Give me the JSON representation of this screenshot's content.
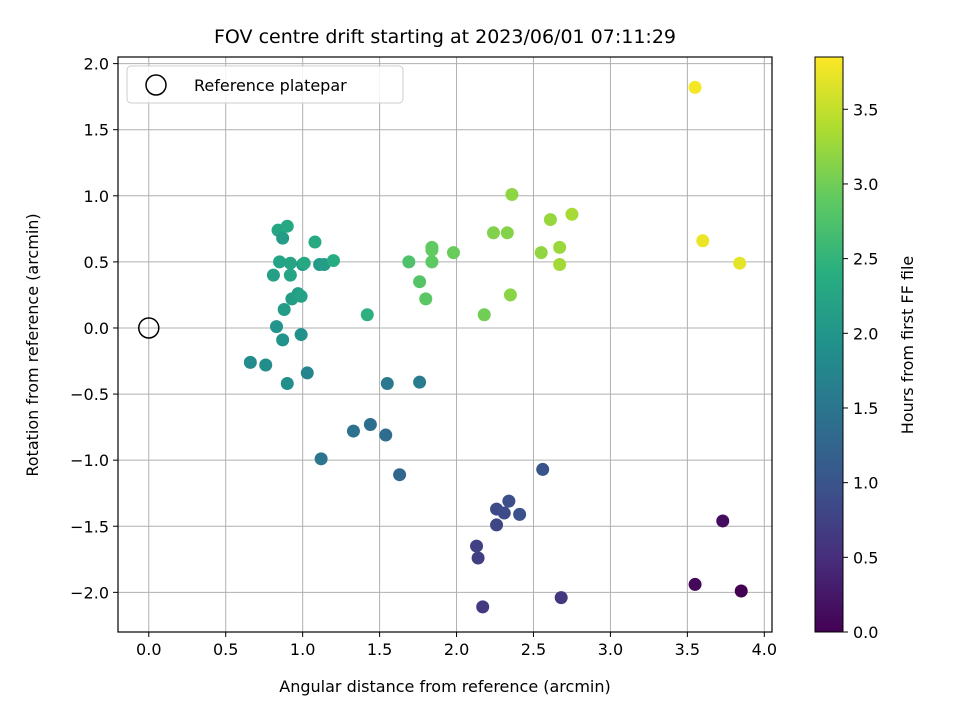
{
  "chart_data": {
    "type": "scatter",
    "title": "FOV centre drift starting at 2023/06/01 07:11:29",
    "xlabel": "Angular distance from reference (arcmin)",
    "ylabel": "Rotation from reference (arcmin)",
    "xlim": [
      -0.2,
      4.05
    ],
    "ylim": [
      -2.3,
      2.05
    ],
    "xticks": [
      0.0,
      0.5,
      1.0,
      1.5,
      2.0,
      2.5,
      3.0,
      3.5,
      4.0
    ],
    "xtick_labels": [
      "0.0",
      "0.5",
      "1.0",
      "1.5",
      "2.0",
      "2.5",
      "3.0",
      "3.5",
      "4.0"
    ],
    "yticks": [
      -2.0,
      -1.5,
      -1.0,
      -0.5,
      0.0,
      0.5,
      1.0,
      1.5,
      2.0
    ],
    "ytick_labels": [
      "−2.0",
      "−1.5",
      "−1.0",
      "−0.5",
      "0.0",
      "0.5",
      "1.0",
      "1.5",
      "2.0"
    ],
    "grid": true,
    "legend": {
      "placement": "top-left",
      "entries": [
        "Reference platepar"
      ]
    },
    "reference_point": {
      "x": 0.0,
      "y": 0.0
    },
    "colorbar": {
      "label": "Hours from first FF file",
      "range": [
        0.0,
        3.85
      ],
      "ticks": [
        0.0,
        0.5,
        1.0,
        1.5,
        2.0,
        2.5,
        3.0,
        3.5
      ],
      "tick_labels": [
        "0.0",
        "0.5",
        "1.0",
        "1.5",
        "2.0",
        "2.5",
        "3.0",
        "3.5"
      ],
      "colormap": "viridis"
    },
    "points": [
      {
        "x": 3.85,
        "y": -1.99,
        "c": 0.0
      },
      {
        "x": 3.55,
        "y": -1.94,
        "c": 0.07
      },
      {
        "x": 3.73,
        "y": -1.46,
        "c": 0.13
      },
      {
        "x": 2.68,
        "y": -2.04,
        "c": 0.6
      },
      {
        "x": 2.17,
        "y": -2.11,
        "c": 0.65
      },
      {
        "x": 2.14,
        "y": -1.74,
        "c": 0.7
      },
      {
        "x": 2.13,
        "y": -1.65,
        "c": 0.75
      },
      {
        "x": 2.26,
        "y": -1.49,
        "c": 0.8
      },
      {
        "x": 2.26,
        "y": -1.37,
        "c": 0.85
      },
      {
        "x": 2.31,
        "y": -1.4,
        "c": 0.88
      },
      {
        "x": 2.34,
        "y": -1.31,
        "c": 0.92
      },
      {
        "x": 2.41,
        "y": -1.41,
        "c": 0.95
      },
      {
        "x": 2.56,
        "y": -1.07,
        "c": 1.0
      },
      {
        "x": 1.63,
        "y": -1.11,
        "c": 1.28
      },
      {
        "x": 1.54,
        "y": -0.81,
        "c": 1.35
      },
      {
        "x": 1.44,
        "y": -0.73,
        "c": 1.4
      },
      {
        "x": 1.33,
        "y": -0.78,
        "c": 1.45
      },
      {
        "x": 1.12,
        "y": -0.99,
        "c": 1.5
      },
      {
        "x": 1.55,
        "y": -0.42,
        "c": 1.55
      },
      {
        "x": 1.76,
        "y": -0.41,
        "c": 1.6
      },
      {
        "x": 1.03,
        "y": -0.34,
        "c": 1.72
      },
      {
        "x": 0.66,
        "y": -0.26,
        "c": 1.85
      },
      {
        "x": 0.76,
        "y": -0.28,
        "c": 1.88
      },
      {
        "x": 0.9,
        "y": -0.42,
        "c": 1.9
      },
      {
        "x": 0.87,
        "y": -0.09,
        "c": 1.94
      },
      {
        "x": 0.83,
        "y": 0.01,
        "c": 1.97
      },
      {
        "x": 0.99,
        "y": -0.05,
        "c": 1.92
      },
      {
        "x": 0.88,
        "y": 0.14,
        "c": 2.1
      },
      {
        "x": 0.93,
        "y": 0.22,
        "c": 2.13
      },
      {
        "x": 0.97,
        "y": 0.26,
        "c": 2.15
      },
      {
        "x": 0.99,
        "y": 0.24,
        "c": 2.2
      },
      {
        "x": 0.81,
        "y": 0.4,
        "c": 2.18
      },
      {
        "x": 0.85,
        "y": 0.5,
        "c": 2.22
      },
      {
        "x": 0.92,
        "y": 0.49,
        "c": 2.24
      },
      {
        "x": 0.92,
        "y": 0.4,
        "c": 2.26
      },
      {
        "x": 1.0,
        "y": 0.48,
        "c": 2.05
      },
      {
        "x": 1.01,
        "y": 0.49,
        "c": 2.3
      },
      {
        "x": 0.84,
        "y": 0.74,
        "c": 2.25
      },
      {
        "x": 0.87,
        "y": 0.68,
        "c": 2.1
      },
      {
        "x": 0.9,
        "y": 0.77,
        "c": 2.3
      },
      {
        "x": 1.08,
        "y": 0.65,
        "c": 2.33
      },
      {
        "x": 1.11,
        "y": 0.48,
        "c": 2.05
      },
      {
        "x": 1.14,
        "y": 0.48,
        "c": 2.1
      },
      {
        "x": 1.2,
        "y": 0.51,
        "c": 2.35
      },
      {
        "x": 1.42,
        "y": 0.1,
        "c": 2.45
      },
      {
        "x": 1.69,
        "y": 0.5,
        "c": 2.75
      },
      {
        "x": 1.76,
        "y": 0.35,
        "c": 2.8
      },
      {
        "x": 1.8,
        "y": 0.22,
        "c": 2.85
      },
      {
        "x": 1.84,
        "y": 0.5,
        "c": 2.88
      },
      {
        "x": 1.84,
        "y": 0.59,
        "c": 2.92
      },
      {
        "x": 1.84,
        "y": 0.61,
        "c": 2.9
      },
      {
        "x": 1.98,
        "y": 0.57,
        "c": 2.95
      },
      {
        "x": 2.18,
        "y": 0.1,
        "c": 3.0
      },
      {
        "x": 2.24,
        "y": 0.72,
        "c": 3.1
      },
      {
        "x": 2.33,
        "y": 0.72,
        "c": 3.12
      },
      {
        "x": 2.35,
        "y": 0.25,
        "c": 3.15
      },
      {
        "x": 2.36,
        "y": 1.01,
        "c": 3.18
      },
      {
        "x": 2.55,
        "y": 0.57,
        "c": 3.2
      },
      {
        "x": 2.61,
        "y": 0.82,
        "c": 3.23
      },
      {
        "x": 2.67,
        "y": 0.61,
        "c": 3.26
      },
      {
        "x": 2.67,
        "y": 0.48,
        "c": 3.3
      },
      {
        "x": 2.75,
        "y": 0.86,
        "c": 3.33
      },
      {
        "x": 3.55,
        "y": 1.82,
        "c": 3.8
      },
      {
        "x": 3.6,
        "y": 0.66,
        "c": 3.75
      },
      {
        "x": 3.84,
        "y": 0.49,
        "c": 3.7
      }
    ]
  }
}
